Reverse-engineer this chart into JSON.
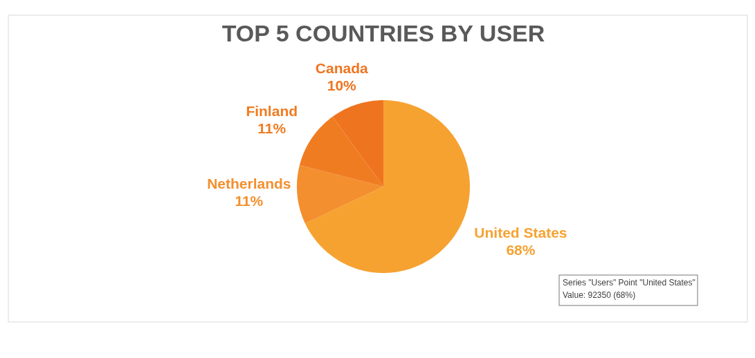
{
  "chart_data": {
    "type": "pie",
    "title": "TOP 5 COUNTRIES BY USER",
    "categories": [
      "United States",
      "Netherlands",
      "Finland",
      "Canada"
    ],
    "values": [
      68,
      11,
      11,
      10
    ],
    "value_labels": [
      "68%",
      "11%",
      "11%",
      "10%"
    ],
    "colors": [
      "#f6a231",
      "#f38f2e",
      "#f07c22",
      "#ef7420"
    ],
    "annotations": [
      "Series \"Users\" Point \"United States\"",
      "Value: 92350 (68%)"
    ]
  }
}
